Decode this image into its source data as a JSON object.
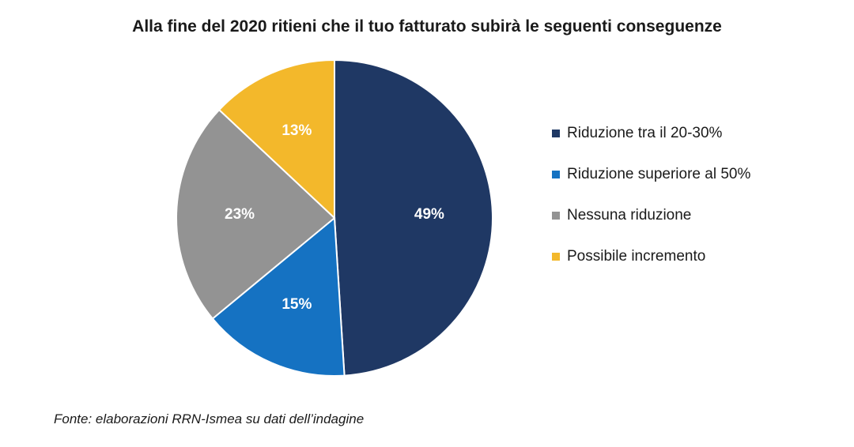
{
  "chart_data": {
    "type": "pie",
    "title": "Alla fine del 2020 ritieni che il tuo fatturato subirà le seguenti conseguenze",
    "slices": [
      {
        "label": "Riduzione tra il 20-30%",
        "value": 49,
        "value_label": "49%",
        "color": "#1f3864"
      },
      {
        "label": "Riduzione superiore al 50%",
        "value": 15,
        "value_label": "15%",
        "color": "#1572c2"
      },
      {
        "label": "Nessuna riduzione",
        "value": 23,
        "value_label": "23%",
        "color": "#939393"
      },
      {
        "label": "Possibile incremento",
        "value": 13,
        "value_label": "13%",
        "color": "#f3b82b"
      }
    ],
    "legend_position": "right",
    "start_angle": "12 o'clock",
    "direction": "clockwise"
  },
  "source_note": "Fonte: elaborazioni RRN-Ismea su dati dell’indagine"
}
